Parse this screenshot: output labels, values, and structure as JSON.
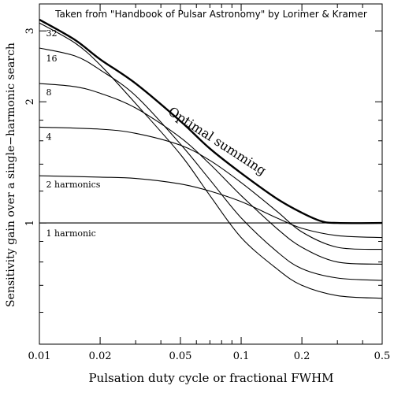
{
  "chart_data": {
    "type": "line",
    "title": "Taken from \"Handbook of Pulsar Astronomy\" by Lorimer & Kramer",
    "xlabel": "Pulsation duty cycle or fractional FWHM",
    "ylabel": "Sensitivity gain over a single−harmonic search",
    "x_scale": "log",
    "y_scale": "log",
    "xlim": [
      0.01,
      0.5
    ],
    "ylim": [
      0.5,
      3.5
    ],
    "x_ticks": [
      {
        "value": 0.01,
        "label": "0.01"
      },
      {
        "value": 0.02,
        "label": "0.02"
      },
      {
        "value": 0.05,
        "label": "0.05"
      },
      {
        "value": 0.1,
        "label": "0.1"
      },
      {
        "value": 0.2,
        "label": "0.2"
      },
      {
        "value": 0.5,
        "label": "0.5"
      }
    ],
    "y_ticks": [
      {
        "value": 1,
        "label": "1"
      },
      {
        "value": 2,
        "label": "2"
      },
      {
        "value": 3,
        "label": "3"
      }
    ],
    "series": [
      {
        "name": "1 harmonic",
        "x": [
          0.01,
          0.5
        ],
        "y": [
          1.0,
          1.0
        ]
      },
      {
        "name": "2 harmonics",
        "x": [
          0.01,
          0.02,
          0.03,
          0.05,
          0.07,
          0.1,
          0.15,
          0.2,
          0.3,
          0.5
        ],
        "y": [
          1.31,
          1.3,
          1.29,
          1.25,
          1.2,
          1.13,
          1.03,
          0.97,
          0.93,
          0.92
        ]
      },
      {
        "name": "4",
        "x": [
          0.01,
          0.02,
          0.03,
          0.05,
          0.07,
          0.1,
          0.15,
          0.2,
          0.3,
          0.5
        ],
        "y": [
          1.73,
          1.71,
          1.67,
          1.56,
          1.43,
          1.26,
          1.07,
          0.95,
          0.87,
          0.86
        ]
      },
      {
        "name": "8",
        "x": [
          0.01,
          0.015,
          0.02,
          0.03,
          0.05,
          0.07,
          0.1,
          0.15,
          0.2,
          0.3,
          0.5
        ],
        "y": [
          2.22,
          2.18,
          2.1,
          1.93,
          1.63,
          1.4,
          1.17,
          0.97,
          0.87,
          0.8,
          0.79
        ]
      },
      {
        "name": "16",
        "x": [
          0.01,
          0.015,
          0.02,
          0.03,
          0.05,
          0.07,
          0.1,
          0.15,
          0.2,
          0.3,
          0.5
        ],
        "y": [
          2.72,
          2.6,
          2.4,
          2.07,
          1.57,
          1.28,
          1.03,
          0.85,
          0.77,
          0.73,
          0.72
        ]
      },
      {
        "name": "32",
        "x": [
          0.01,
          0.015,
          0.02,
          0.03,
          0.05,
          0.07,
          0.1,
          0.15,
          0.2,
          0.3,
          0.5
        ],
        "y": [
          3.14,
          2.8,
          2.47,
          1.98,
          1.48,
          1.17,
          0.92,
          0.77,
          0.7,
          0.66,
          0.65
        ]
      },
      {
        "name": "Optimal summing",
        "x": [
          0.01,
          0.015,
          0.02,
          0.03,
          0.05,
          0.07,
          0.1,
          0.15,
          0.2,
          0.25,
          0.3,
          0.5
        ],
        "y": [
          3.2,
          2.85,
          2.55,
          2.22,
          1.79,
          1.53,
          1.33,
          1.15,
          1.06,
          1.01,
          1.0,
          1.0
        ]
      }
    ],
    "series_labels": [
      "1 harmonic",
      "2 harmonics",
      "4",
      "8",
      "16",
      "32"
    ],
    "annotations": [
      "Optimal summing"
    ],
    "grid": false
  }
}
